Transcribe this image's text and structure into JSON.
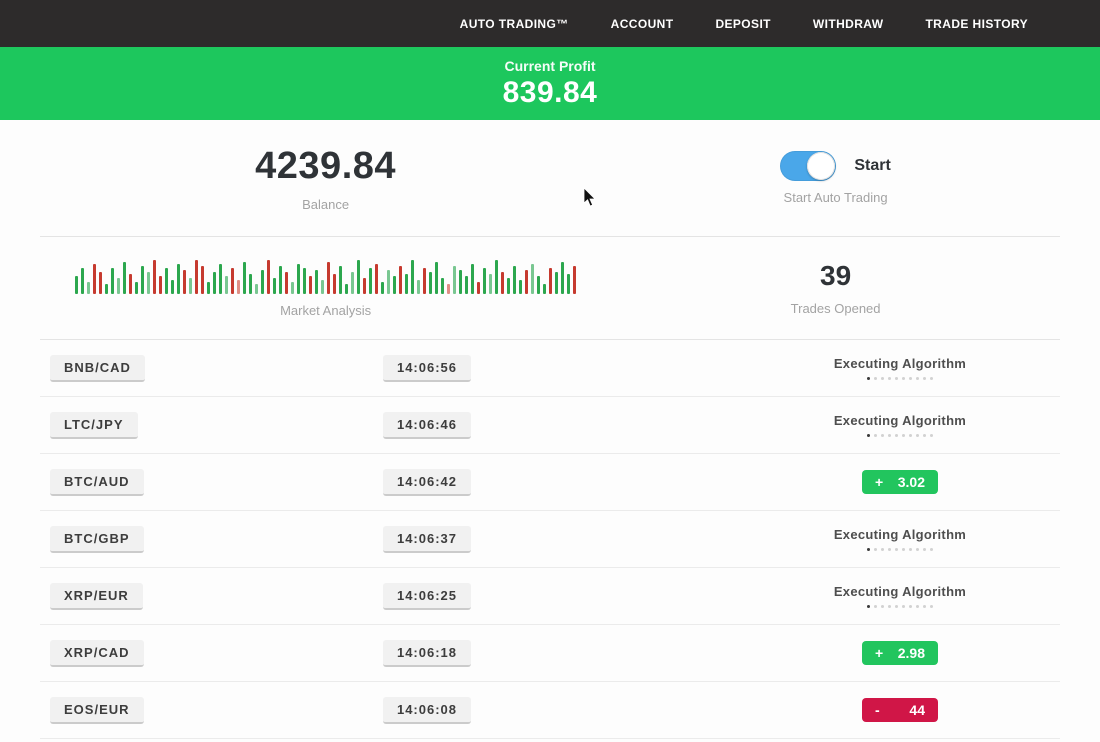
{
  "nav": {
    "items": [
      "AUTO TRADING™",
      "ACCOUNT",
      "DEPOSIT",
      "WITHDRAW",
      "TRADE HISTORY"
    ]
  },
  "banner": {
    "label": "Current Profit",
    "value": "839.84"
  },
  "stats": {
    "balance": {
      "value": "4239.84",
      "label": "Balance"
    },
    "auto_trading": {
      "toggle_label": "Start",
      "label": "Start Auto Trading",
      "state": "on"
    },
    "market_analysis": {
      "label": "Market Analysis"
    },
    "trades_opened": {
      "value": "39",
      "label": "Trades Opened"
    }
  },
  "colors": {
    "nav_bg": "#2d2b2b",
    "banner_green": "#1dc75d",
    "toggle_blue": "#4aa7e9",
    "result_green": "#22c55e",
    "result_red": "#d01647",
    "bar_green": "#2ca74e",
    "bar_red": "#c63a2f"
  },
  "market_bars": [
    [
      18,
      "g"
    ],
    [
      26,
      "g"
    ],
    [
      12,
      "l"
    ],
    [
      30,
      "r"
    ],
    [
      22,
      "r"
    ],
    [
      10,
      "g"
    ],
    [
      26,
      "g"
    ],
    [
      16,
      "l"
    ],
    [
      32,
      "g"
    ],
    [
      20,
      "r"
    ],
    [
      12,
      "g"
    ],
    [
      28,
      "g"
    ],
    [
      22,
      "l"
    ],
    [
      34,
      "r"
    ],
    [
      18,
      "r"
    ],
    [
      26,
      "g"
    ],
    [
      14,
      "g"
    ],
    [
      30,
      "g"
    ],
    [
      24,
      "r"
    ],
    [
      16,
      "l"
    ],
    [
      34,
      "r"
    ],
    [
      28,
      "r"
    ],
    [
      12,
      "g"
    ],
    [
      22,
      "g"
    ],
    [
      30,
      "g"
    ],
    [
      18,
      "l"
    ],
    [
      26,
      "r"
    ],
    [
      14,
      "p"
    ],
    [
      32,
      "g"
    ],
    [
      20,
      "g"
    ],
    [
      10,
      "l"
    ],
    [
      24,
      "g"
    ],
    [
      34,
      "r"
    ],
    [
      16,
      "g"
    ],
    [
      28,
      "g"
    ],
    [
      22,
      "r"
    ],
    [
      12,
      "l"
    ],
    [
      30,
      "g"
    ],
    [
      26,
      "g"
    ],
    [
      18,
      "r"
    ],
    [
      24,
      "g"
    ],
    [
      14,
      "l"
    ],
    [
      32,
      "r"
    ],
    [
      20,
      "r"
    ],
    [
      28,
      "g"
    ],
    [
      10,
      "g"
    ],
    [
      22,
      "l"
    ],
    [
      34,
      "g"
    ],
    [
      16,
      "r"
    ],
    [
      26,
      "g"
    ],
    [
      30,
      "r"
    ],
    [
      12,
      "g"
    ],
    [
      24,
      "l"
    ],
    [
      18,
      "g"
    ],
    [
      28,
      "r"
    ],
    [
      20,
      "g"
    ],
    [
      34,
      "g"
    ],
    [
      14,
      "l"
    ],
    [
      26,
      "r"
    ],
    [
      22,
      "g"
    ],
    [
      32,
      "g"
    ],
    [
      16,
      "g"
    ],
    [
      10,
      "p"
    ],
    [
      28,
      "l"
    ],
    [
      24,
      "g"
    ],
    [
      18,
      "g"
    ],
    [
      30,
      "g"
    ],
    [
      12,
      "r"
    ],
    [
      26,
      "g"
    ],
    [
      20,
      "l"
    ],
    [
      34,
      "g"
    ],
    [
      22,
      "r"
    ],
    [
      16,
      "g"
    ],
    [
      28,
      "g"
    ],
    [
      14,
      "g"
    ],
    [
      24,
      "r"
    ],
    [
      30,
      "l"
    ],
    [
      18,
      "g"
    ],
    [
      10,
      "g"
    ],
    [
      26,
      "r"
    ],
    [
      22,
      "g"
    ],
    [
      32,
      "g"
    ],
    [
      20,
      "g"
    ],
    [
      28,
      "r"
    ]
  ],
  "trades": [
    {
      "pair": "BNB/CAD",
      "time": "14:06:56",
      "status": "executing",
      "status_label": "Executing Algorithm"
    },
    {
      "pair": "LTC/JPY",
      "time": "14:06:46",
      "status": "executing",
      "status_label": "Executing Algorithm"
    },
    {
      "pair": "BTC/AUD",
      "time": "14:06:42",
      "status": "result",
      "sign": "+",
      "value": "3.02",
      "direction": "positive"
    },
    {
      "pair": "BTC/GBP",
      "time": "14:06:37",
      "status": "executing",
      "status_label": "Executing Algorithm"
    },
    {
      "pair": "XRP/EUR",
      "time": "14:06:25",
      "status": "executing",
      "status_label": "Executing Algorithm"
    },
    {
      "pair": "XRP/CAD",
      "time": "14:06:18",
      "status": "result",
      "sign": "+",
      "value": "2.98",
      "direction": "positive"
    },
    {
      "pair": "EOS/EUR",
      "time": "14:06:08",
      "status": "result",
      "sign": "-",
      "value": "44",
      "direction": "negative"
    }
  ]
}
